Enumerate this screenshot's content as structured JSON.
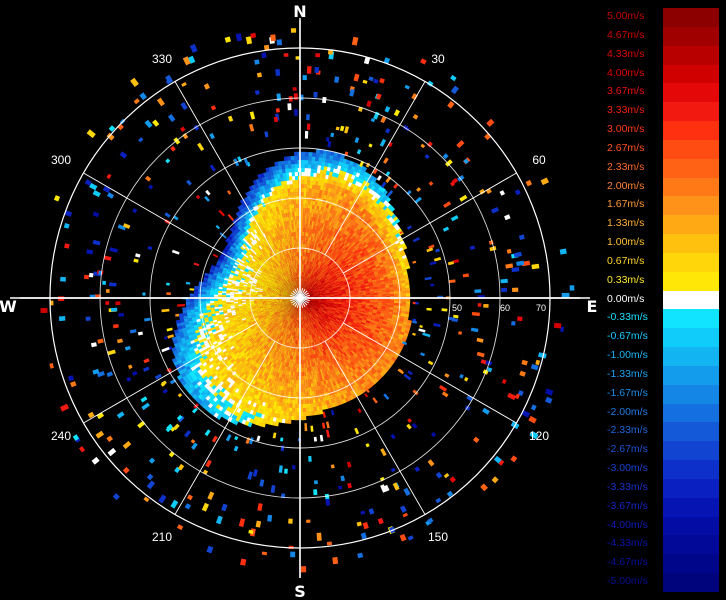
{
  "radar": {
    "cardinals": {
      "north": "N",
      "south": "S",
      "east": "E",
      "west": "W"
    },
    "azimuth_labels": [
      {
        "deg": 30,
        "text": "30"
      },
      {
        "deg": 60,
        "text": "60"
      },
      {
        "deg": 120,
        "text": "120"
      },
      {
        "deg": 150,
        "text": "150"
      },
      {
        "deg": 210,
        "text": "210"
      },
      {
        "deg": 240,
        "text": "240"
      },
      {
        "deg": 300,
        "text": "300"
      },
      {
        "deg": 330,
        "text": "330"
      }
    ],
    "range_labels": [
      "50",
      "60",
      "70"
    ]
  },
  "legend": {
    "entries": [
      {
        "label": "5.00m/s",
        "color": "#8c0000",
        "text_color": "#c40000"
      },
      {
        "label": "4.67m/s",
        "color": "#a00000",
        "text_color": "#d00000"
      },
      {
        "label": "4.33m/s",
        "color": "#b80000",
        "text_color": "#dd0000"
      },
      {
        "label": "4.00m/s",
        "color": "#d00000",
        "text_color": "#e60000"
      },
      {
        "label": "3.67m/s",
        "color": "#e40808",
        "text_color": "#ee1010"
      },
      {
        "label": "3.33m/s",
        "color": "#f21a10",
        "text_color": "#f42010"
      },
      {
        "label": "3.00m/s",
        "color": "#ff3010",
        "text_color": "#ff3818"
      },
      {
        "label": "2.67m/s",
        "color": "#ff4c12",
        "text_color": "#ff5020"
      },
      {
        "label": "2.33m/s",
        "color": "#ff6214",
        "text_color": "#ff6828"
      },
      {
        "label": "2.00m/s",
        "color": "#ff7a16",
        "text_color": "#ff8030"
      },
      {
        "label": "1.67m/s",
        "color": "#ff9218",
        "text_color": "#ff9834"
      },
      {
        "label": "1.33m/s",
        "color": "#ffaa14",
        "text_color": "#ffae30"
      },
      {
        "label": "1.00m/s",
        "color": "#ffc00e",
        "text_color": "#ffc22c"
      },
      {
        "label": "0.67m/s",
        "color": "#ffd60a",
        "text_color": "#ffd628"
      },
      {
        "label": "0.33m/s",
        "color": "#ffe808",
        "text_color": "#ffe830"
      },
      {
        "label": "0.00m/s",
        "color": "#ffffff",
        "text_color": "#ffffff"
      },
      {
        "label": "-0.33m/s",
        "color": "#10e4ff",
        "text_color": "#18e0ff"
      },
      {
        "label": "-0.67m/s",
        "color": "#10ccfa",
        "text_color": "#18ccff"
      },
      {
        "label": "-1.00m/s",
        "color": "#12b4f2",
        "text_color": "#1cb6f6"
      },
      {
        "label": "-1.33m/s",
        "color": "#149cec",
        "text_color": "#1ea2f0"
      },
      {
        "label": "-1.67m/s",
        "color": "#1486e6",
        "text_color": "#1e8eea"
      },
      {
        "label": "-2.00m/s",
        "color": "#1470e0",
        "text_color": "#1e7ae4"
      },
      {
        "label": "-2.33m/s",
        "color": "#145ad8",
        "text_color": "#1e66de"
      },
      {
        "label": "-2.67m/s",
        "color": "#1244d2",
        "text_color": "#1c52d8"
      },
      {
        "label": "-3.00m/s",
        "color": "#0e30ca",
        "text_color": "#1a40d4"
      },
      {
        "label": "-3.33m/s",
        "color": "#0a20c0",
        "text_color": "#1830cc"
      },
      {
        "label": "-3.67m/s",
        "color": "#0614b4",
        "text_color": "#1424c4"
      },
      {
        "label": "-4.00m/s",
        "color": "#040ca6",
        "text_color": "#101ab8"
      },
      {
        "label": "-4.33m/s",
        "color": "#020898",
        "text_color": "#0c14aa"
      },
      {
        "label": "-4.67m/s",
        "color": "#00068a",
        "text_color": "#0a109c"
      },
      {
        "label": "-5.00m/s",
        "color": "#00047c",
        "text_color": "#080e8e"
      }
    ]
  }
}
